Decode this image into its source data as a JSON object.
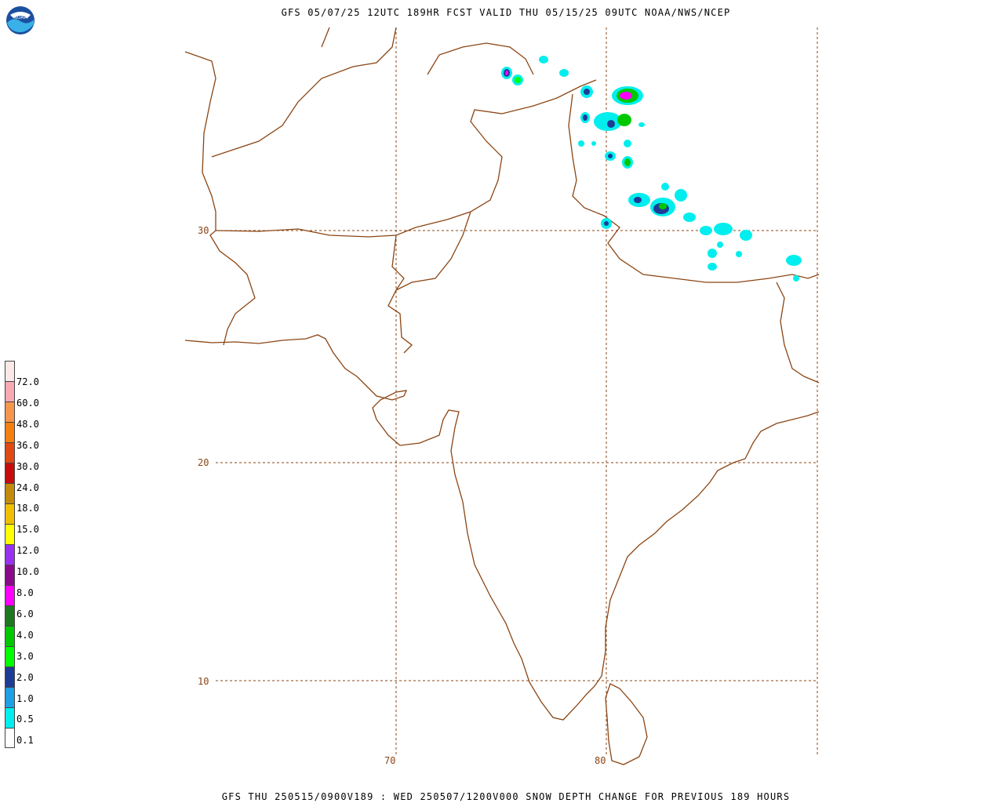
{
  "header": {
    "title": "GFS 05/07/25 12UTC 189HR FCST VALID THU 05/15/25 09UTC NOAA/NWS/NCEP"
  },
  "footer": {
    "caption": "GFS THU 250515/0900V189 : WED 250507/1200V000 SNOW DEPTH CHANGE FOR PREVIOUS 189 HOURS"
  },
  "logo": {
    "text": "NOAA",
    "icon": "noaa-logo-icon"
  },
  "map": {
    "latitude_labels": [
      "30",
      "20",
      "10"
    ],
    "longitude_labels": [
      "70",
      "80"
    ],
    "colors": {
      "coast": "#8b4513",
      "grid": "#8b4513"
    }
  },
  "legend": {
    "labels": [
      "72.0",
      "60.0",
      "48.0",
      "36.0",
      "30.0",
      "24.0",
      "18.0",
      "15.0",
      "12.0",
      "10.0",
      "8.0",
      "6.0",
      "4.0",
      "3.0",
      "2.0",
      "1.0",
      "0.5",
      "0.1"
    ],
    "colors": [
      "#fde8e8",
      "#f9a9b3",
      "#f7964d",
      "#f57f0f",
      "#e04a12",
      "#c80c0c",
      "#c38a0c",
      "#f0c000",
      "#ffff00",
      "#9932f0",
      "#8b0a8b",
      "#ff00ff",
      "#1e781e",
      "#00c800",
      "#00ff00",
      "#1e3c96",
      "#1ea0e6",
      "#00eeee",
      "#ffffff"
    ]
  }
}
